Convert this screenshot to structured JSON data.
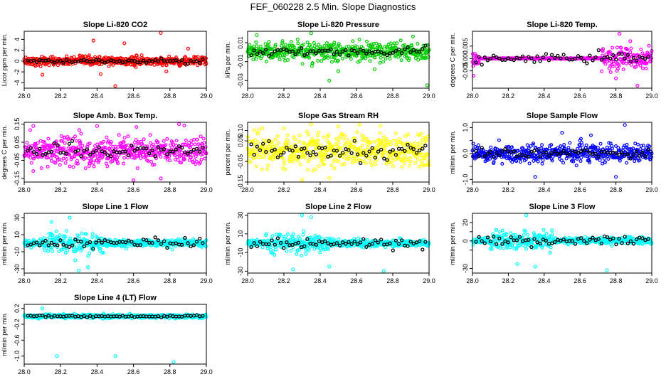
{
  "title": "FEF_060228  2.5 Min. Slope Diagnostics",
  "colors": {
    "red": "#ff0000",
    "green": "#00cc00",
    "magenta": "#ff00ff",
    "yellow": "#ffff00",
    "blue": "#0000ff",
    "cyan": "#00ffff",
    "black": "#000000"
  },
  "chart_data": [
    {
      "type": "scatter",
      "title": "Slope Li-820 CO2",
      "ylabel": "Licor ppm per min.",
      "xlim": [
        28.0,
        29.0
      ],
      "ylim": [
        -5,
        5.5
      ],
      "xticks": [
        "28.0",
        "28.2",
        "28.4",
        "28.6",
        "28.8",
        "29.0"
      ],
      "yticks": [
        -4,
        -2,
        0,
        2,
        4
      ],
      "ytick_labels": [
        "-4",
        "-2",
        "0",
        "2",
        "4"
      ],
      "color": "red",
      "outliers": [
        [
          28.75,
          5.2
        ],
        [
          28.5,
          -4.6
        ],
        [
          28.38,
          3.8
        ],
        [
          28.55,
          3.3
        ],
        [
          28.1,
          -2.5
        ],
        [
          28.42,
          -2.4
        ],
        [
          28.9,
          2.3
        ],
        [
          28.78,
          -1.9
        ]
      ],
      "spread": 0.8
    },
    {
      "type": "scatter",
      "title": "Slope Li-820 Pressure",
      "ylabel": "kPa per min.",
      "xlim": [
        28.0,
        29.0
      ],
      "ylim": [
        -0.038,
        0.022
      ],
      "xticks": [
        "28.0",
        "28.2",
        "28.4",
        "28.6",
        "28.8",
        "29.0"
      ],
      "yticks": [
        -0.03,
        -0.01,
        0.01
      ],
      "ytick_labels": [
        "-0.03",
        "-0.01",
        "0.01"
      ],
      "color": "green",
      "outliers": [
        [
          28.45,
          -0.03
        ],
        [
          28.99,
          -0.035
        ],
        [
          28.05,
          0.018
        ],
        [
          28.5,
          -0.02
        ],
        [
          28.7,
          -0.018
        ],
        [
          28.35,
          0.02
        ]
      ],
      "spread": 0.009
    },
    {
      "type": "scatter",
      "title": "Slope Li-820 Temp.",
      "ylabel": "degrees C per min.",
      "xlim": [
        28.0,
        29.0
      ],
      "ylim": [
        -0.012,
        0.011
      ],
      "xticks": [
        "28.0",
        "28.2",
        "28.4",
        "28.6",
        "28.8",
        "29.0"
      ],
      "yticks": [
        -0.005,
        0.0,
        0.005
      ],
      "ytick_labels": [
        "-0.005",
        "0.000",
        "0.005"
      ],
      "color": "magenta",
      "outliers": [
        [
          28.82,
          0.01
        ],
        [
          28.92,
          -0.011
        ],
        [
          28.8,
          -0.008
        ],
        [
          28.88,
          0.007
        ]
      ],
      "spread": 0.004
    },
    {
      "type": "scatter",
      "title": "Slope Amb. Box Temp.",
      "ylabel": "degrees C per min.",
      "xlim": [
        28.0,
        29.0
      ],
      "ylim": [
        -0.17,
        0.16
      ],
      "xticks": [
        "28.0",
        "28.2",
        "28.4",
        "28.6",
        "28.8",
        "29.0"
      ],
      "yticks": [
        -0.15,
        -0.05,
        0.05,
        0.15
      ],
      "ytick_labels": [
        "-0.15",
        "-0.05",
        "0.05",
        "0.15"
      ],
      "color": "magenta",
      "outliers": [
        [
          28.05,
          0.14
        ],
        [
          28.75,
          -0.15
        ],
        [
          28.4,
          0.14
        ],
        [
          28.6,
          -0.16
        ],
        [
          28.85,
          0.15
        ]
      ],
      "spread": 0.08
    },
    {
      "type": "scatter",
      "title": "Slope Gas Stream RH",
      "ylabel": "percent per min.",
      "xlim": [
        28.0,
        29.0
      ],
      "ylim": [
        -0.15,
        0.14
      ],
      "xticks": [
        "28.0",
        "28.2",
        "28.4",
        "28.6",
        "28.8",
        "29.0"
      ],
      "yticks": [
        -0.15,
        -0.05,
        0.05,
        0.1
      ],
      "ytick_labels": [
        "-0.15",
        "-0.05",
        "0.05",
        "0.10"
      ],
      "color": "yellow",
      "outliers": [
        [
          28.35,
          0.13
        ],
        [
          28.3,
          -0.14
        ],
        [
          28.5,
          0.12
        ],
        [
          28.45,
          -0.13
        ],
        [
          28.2,
          0.11
        ]
      ],
      "spread": 0.08
    },
    {
      "type": "scatter",
      "title": "Slope Sample Flow",
      "ylabel": "ml/min per min.",
      "xlim": [
        28.0,
        29.0
      ],
      "ylim": [
        -1.1,
        1.2
      ],
      "xticks": [
        "28.0",
        "28.2",
        "28.4",
        "28.6",
        "28.8",
        "29.0"
      ],
      "yticks": [
        -1,
        -0.5,
        0,
        0.5,
        1
      ],
      "ytick_labels": [
        "-1.0",
        "",
        "0.0",
        "",
        "1.0"
      ],
      "color": "blue",
      "outliers": [
        [
          28.85,
          1.1
        ],
        [
          28.8,
          -0.9
        ],
        [
          28.5,
          0.8
        ],
        [
          28.35,
          -0.9
        ],
        [
          28.6,
          0.5
        ]
      ],
      "spread": 0.35
    },
    {
      "type": "scatter",
      "title": "Slope Line 1 Flow",
      "ylabel": "ml/min per min.",
      "xlim": [
        28.0,
        29.0
      ],
      "ylim": [
        -35,
        35
      ],
      "xticks": [
        "28.0",
        "28.2",
        "28.4",
        "28.6",
        "28.8",
        "29.0"
      ],
      "yticks": [
        -30,
        -10,
        10,
        30
      ],
      "ytick_labels": [
        "-30",
        "-10",
        "10",
        "30"
      ],
      "color": "cyan",
      "outliers": [
        [
          28.25,
          30
        ],
        [
          28.3,
          -32
        ],
        [
          28.15,
          25
        ],
        [
          28.35,
          -28
        ],
        [
          28.28,
          -20
        ]
      ],
      "spread": 12
    },
    {
      "type": "scatter",
      "title": "Slope Line 2 Flow",
      "ylabel": "ml/min per min.",
      "xlim": [
        28.0,
        29.0
      ],
      "ylim": [
        -32,
        32
      ],
      "xticks": [
        "28.0",
        "28.2",
        "28.4",
        "28.6",
        "28.8",
        "29.0"
      ],
      "yticks": [
        -30,
        -10,
        10,
        30
      ],
      "ytick_labels": [
        "-30",
        "-10",
        "10",
        "30"
      ],
      "color": "cyan",
      "outliers": [
        [
          28.3,
          30
        ],
        [
          28.75,
          -30
        ],
        [
          28.25,
          -28
        ],
        [
          28.35,
          28
        ],
        [
          28.45,
          -25
        ]
      ],
      "spread": 10
    },
    {
      "type": "scatter",
      "title": "Slope Line 3 Flow",
      "ylabel": "ml/min per min.",
      "xlim": [
        28.0,
        29.0
      ],
      "ylim": [
        -35,
        30
      ],
      "xticks": [
        "28.0",
        "28.2",
        "28.4",
        "28.6",
        "28.8",
        "29.0"
      ],
      "yticks": [
        -30,
        -10,
        0,
        10,
        20
      ],
      "ytick_labels": [
        "-30",
        "",
        "0",
        "",
        "20"
      ],
      "color": "cyan",
      "outliers": [
        [
          28.3,
          28
        ],
        [
          28.75,
          -32
        ],
        [
          28.35,
          -28
        ],
        [
          28.25,
          -25
        ]
      ],
      "spread": 10
    },
    {
      "type": "scatter",
      "title": "Slope Line 4 (LT) Flow",
      "ylabel": "ml/min per min.",
      "xlim": [
        28.0,
        29.0
      ],
      "ylim": [
        -1.2,
        0.3
      ],
      "xticks": [
        "28.0",
        "28.2",
        "28.4",
        "28.6",
        "28.8",
        "29.0"
      ],
      "yticks": [
        -1.0,
        -0.6,
        -0.2,
        0.2
      ],
      "ytick_labels": [
        "-1.0",
        "-0.6",
        "-0.2",
        "0.2"
      ],
      "color": "cyan",
      "outliers": [
        [
          28.18,
          -1.0
        ],
        [
          28.5,
          -1.0
        ],
        [
          28.82,
          -1.15
        ],
        [
          28.1,
          0.2
        ]
      ],
      "spread": 0.05
    }
  ]
}
